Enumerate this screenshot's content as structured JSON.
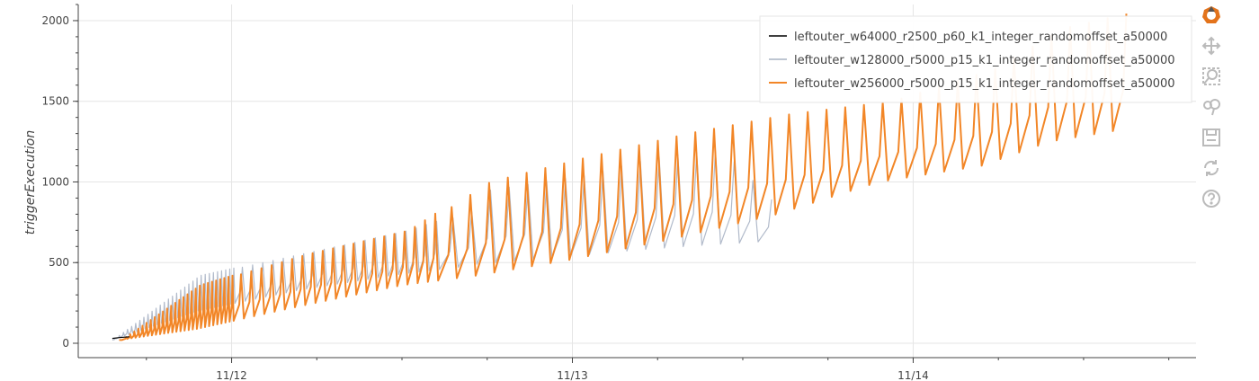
{
  "chart_data": {
    "type": "line",
    "ylabel": "triggerExecution",
    "xlabel": "",
    "ylim": [
      0,
      2100
    ],
    "y_ticks": [
      0,
      500,
      1000,
      1500,
      2000
    ],
    "x_ticks": [
      "11/12",
      "11/13",
      "11/14"
    ],
    "x_range_days": [
      11.55,
      14.83
    ],
    "grid": true,
    "legend_position": "top-right",
    "series": [
      {
        "name": "leftouter_w64000_r2500_p60_k1_integer_randomoffset_a50000",
        "color": "#000000",
        "x_day": [
          11.65,
          11.67,
          11.7
        ],
        "y_base": [
          30,
          35,
          40
        ],
        "y_peak": [
          30,
          35,
          40
        ]
      },
      {
        "name": "leftouter_w128000_r5000_p15_k1_integer_randomoffset_a50000",
        "color": "#a9b3c4",
        "x_day": [
          11.65,
          11.9,
          12.2,
          12.5,
          12.7,
          12.72,
          13.0,
          13.2,
          13.4,
          13.56
        ],
        "y_base": [
          20,
          200,
          330,
          430,
          480,
          490,
          540,
          580,
          610,
          630
        ],
        "y_peak": [
          30,
          420,
          560,
          700,
          840,
          950,
          1040,
          1150,
          1200,
          860
        ]
      },
      {
        "name": "leftouter_w256000_r5000_p15_k1_integer_randomoffset_a50000",
        "color": "#f28627",
        "x_day": [
          11.67,
          11.9,
          12.2,
          12.5,
          12.72,
          13.0,
          13.3,
          13.6,
          13.9,
          14.2,
          14.4,
          14.6,
          14.63
        ],
        "y_base": [
          20,
          90,
          230,
          360,
          420,
          520,
          650,
          800,
          1000,
          1100,
          1250,
          1320,
          1500
        ],
        "y_peak": [
          20,
          360,
          550,
          700,
          1000,
          1150,
          1300,
          1420,
          1500,
          1700,
          1950,
          2050,
          2100
        ]
      }
    ]
  },
  "toolbar": {
    "tools": [
      {
        "name": "bokeh-logo-icon"
      },
      {
        "name": "pan-icon"
      },
      {
        "name": "box-zoom-icon"
      },
      {
        "name": "wheel-zoom-icon"
      },
      {
        "name": "save-icon"
      },
      {
        "name": "reset-icon"
      },
      {
        "name": "help-icon"
      }
    ]
  }
}
